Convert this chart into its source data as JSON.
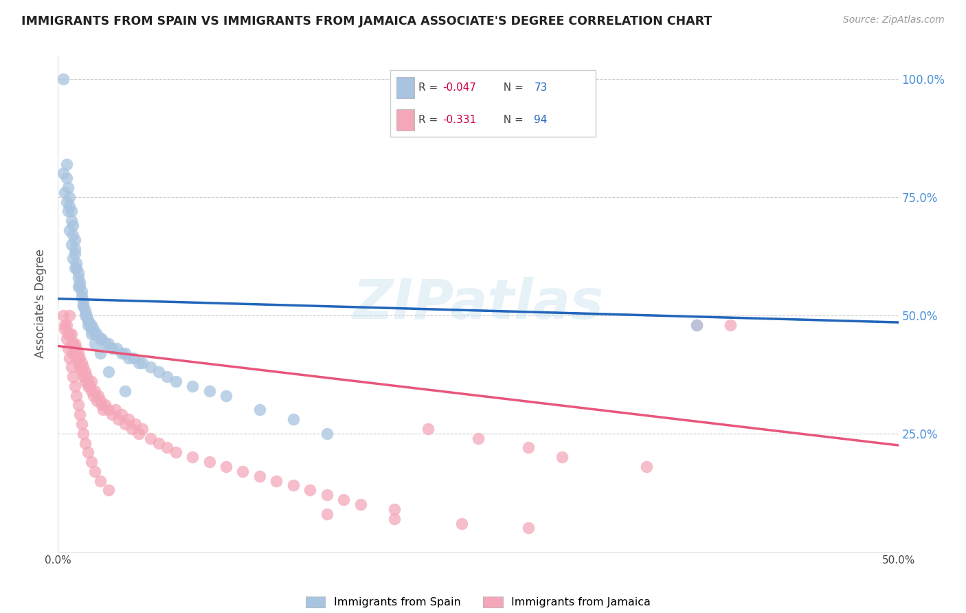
{
  "title": "IMMIGRANTS FROM SPAIN VS IMMIGRANTS FROM JAMAICA ASSOCIATE'S DEGREE CORRELATION CHART",
  "source": "Source: ZipAtlas.com",
  "ylabel": "Associate's Degree",
  "xlim": [
    0.0,
    0.5
  ],
  "ylim": [
    0.0,
    1.05
  ],
  "spain_color": "#a8c4e0",
  "jamaica_color": "#f4a7b9",
  "spain_line_color": "#2266bb",
  "jamaica_line_color": "#e8567a",
  "spain_R": -0.047,
  "spain_N": 73,
  "jamaica_R": -0.331,
  "jamaica_N": 94,
  "r_value_color": "#cc0044",
  "n_value_color": "#2266bb",
  "legend_label_spain": "Immigrants from Spain",
  "legend_label_jamaica": "Immigrants from Jamaica",
  "watermark": "ZIPatlas",
  "spain_line_x0": 0.0,
  "spain_line_y0": 0.535,
  "spain_line_x1": 0.5,
  "spain_line_y1": 0.485,
  "jamaica_line_x0": 0.0,
  "jamaica_line_y0": 0.435,
  "jamaica_line_x1": 0.5,
  "jamaica_line_y1": 0.225,
  "spain_scatter_x": [
    0.003,
    0.005,
    0.005,
    0.006,
    0.007,
    0.007,
    0.008,
    0.008,
    0.009,
    0.009,
    0.01,
    0.01,
    0.01,
    0.011,
    0.011,
    0.012,
    0.012,
    0.013,
    0.013,
    0.014,
    0.014,
    0.015,
    0.015,
    0.016,
    0.016,
    0.017,
    0.018,
    0.018,
    0.019,
    0.02,
    0.02,
    0.021,
    0.022,
    0.023,
    0.025,
    0.026,
    0.028,
    0.03,
    0.032,
    0.035,
    0.038,
    0.04,
    0.042,
    0.045,
    0.048,
    0.05,
    0.055,
    0.06,
    0.065,
    0.07,
    0.08,
    0.09,
    0.1,
    0.12,
    0.14,
    0.16,
    0.003,
    0.004,
    0.005,
    0.006,
    0.007,
    0.008,
    0.009,
    0.01,
    0.012,
    0.015,
    0.018,
    0.02,
    0.022,
    0.025,
    0.03,
    0.04,
    0.38
  ],
  "spain_scatter_y": [
    1.0,
    0.82,
    0.79,
    0.77,
    0.75,
    0.73,
    0.72,
    0.7,
    0.69,
    0.67,
    0.66,
    0.64,
    0.63,
    0.61,
    0.6,
    0.59,
    0.58,
    0.57,
    0.56,
    0.55,
    0.54,
    0.53,
    0.52,
    0.51,
    0.5,
    0.5,
    0.49,
    0.49,
    0.48,
    0.48,
    0.47,
    0.47,
    0.46,
    0.46,
    0.45,
    0.45,
    0.44,
    0.44,
    0.43,
    0.43,
    0.42,
    0.42,
    0.41,
    0.41,
    0.4,
    0.4,
    0.39,
    0.38,
    0.37,
    0.36,
    0.35,
    0.34,
    0.33,
    0.3,
    0.28,
    0.25,
    0.8,
    0.76,
    0.74,
    0.72,
    0.68,
    0.65,
    0.62,
    0.6,
    0.56,
    0.52,
    0.48,
    0.46,
    0.44,
    0.42,
    0.38,
    0.34,
    0.48
  ],
  "jamaica_scatter_x": [
    0.003,
    0.004,
    0.005,
    0.006,
    0.007,
    0.007,
    0.008,
    0.008,
    0.009,
    0.009,
    0.01,
    0.01,
    0.011,
    0.011,
    0.012,
    0.012,
    0.013,
    0.013,
    0.014,
    0.014,
    0.015,
    0.015,
    0.016,
    0.016,
    0.017,
    0.018,
    0.018,
    0.019,
    0.02,
    0.02,
    0.021,
    0.022,
    0.023,
    0.024,
    0.025,
    0.026,
    0.027,
    0.028,
    0.03,
    0.032,
    0.034,
    0.036,
    0.038,
    0.04,
    0.042,
    0.044,
    0.046,
    0.048,
    0.05,
    0.055,
    0.06,
    0.065,
    0.07,
    0.08,
    0.09,
    0.1,
    0.11,
    0.12,
    0.13,
    0.14,
    0.15,
    0.16,
    0.17,
    0.18,
    0.2,
    0.22,
    0.25,
    0.28,
    0.3,
    0.35,
    0.004,
    0.005,
    0.006,
    0.007,
    0.008,
    0.009,
    0.01,
    0.011,
    0.012,
    0.013,
    0.014,
    0.015,
    0.016,
    0.018,
    0.02,
    0.022,
    0.025,
    0.03,
    0.16,
    0.2,
    0.24,
    0.28,
    0.38,
    0.4
  ],
  "jamaica_scatter_y": [
    0.5,
    0.48,
    0.48,
    0.46,
    0.46,
    0.5,
    0.44,
    0.46,
    0.44,
    0.42,
    0.44,
    0.42,
    0.43,
    0.41,
    0.42,
    0.4,
    0.41,
    0.39,
    0.4,
    0.38,
    0.39,
    0.37,
    0.38,
    0.36,
    0.37,
    0.36,
    0.35,
    0.35,
    0.34,
    0.36,
    0.33,
    0.34,
    0.32,
    0.33,
    0.32,
    0.31,
    0.3,
    0.31,
    0.3,
    0.29,
    0.3,
    0.28,
    0.29,
    0.27,
    0.28,
    0.26,
    0.27,
    0.25,
    0.26,
    0.24,
    0.23,
    0.22,
    0.21,
    0.2,
    0.19,
    0.18,
    0.17,
    0.16,
    0.15,
    0.14,
    0.13,
    0.12,
    0.11,
    0.1,
    0.09,
    0.26,
    0.24,
    0.22,
    0.2,
    0.18,
    0.47,
    0.45,
    0.43,
    0.41,
    0.39,
    0.37,
    0.35,
    0.33,
    0.31,
    0.29,
    0.27,
    0.25,
    0.23,
    0.21,
    0.19,
    0.17,
    0.15,
    0.13,
    0.08,
    0.07,
    0.06,
    0.05,
    0.48,
    0.48
  ]
}
